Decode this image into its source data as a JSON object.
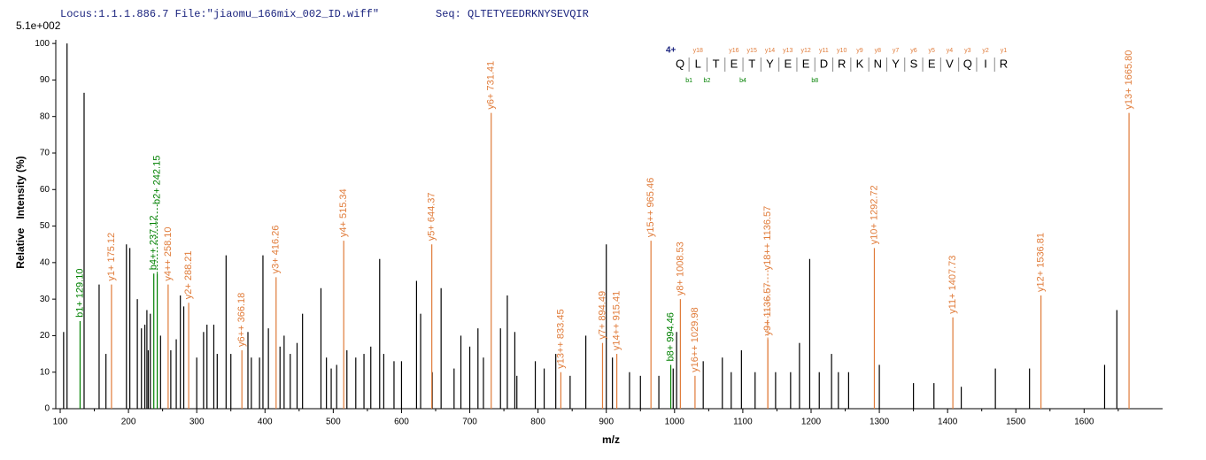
{
  "header": {
    "locus": "Locus:1.1.1.886.7 File:\"jiaomu_166mix_002_ID.wiff\"",
    "seq": "Seq: QLTETYEEDRKNYSEVQIR"
  },
  "chart_data": {
    "type": "spectrum",
    "scale_label": "5.1e+002",
    "xlabel": "m/z",
    "ylabel": "Relative   Intensity (%)",
    "xlim": [
      100,
      1715
    ],
    "ylim": [
      0,
      101
    ],
    "xticks": [
      100,
      200,
      300,
      400,
      500,
      600,
      700,
      800,
      900,
      1000,
      1100,
      1200,
      1300,
      1400,
      1500,
      1600
    ],
    "yticks": [
      0,
      10,
      20,
      30,
      40,
      50,
      60,
      70,
      80,
      90,
      100
    ],
    "series": [
      {
        "color": "#000000",
        "x": [
          105,
          110,
          135,
          157,
          167,
          197,
          202,
          213,
          219,
          224,
          227,
          229,
          232,
          247,
          262,
          270,
          276,
          281,
          300,
          310,
          315,
          325,
          330,
          343,
          350,
          375,
          380,
          392,
          397,
          405,
          422,
          428,
          437,
          447,
          455,
          482,
          490,
          497,
          505,
          520,
          533,
          545,
          555,
          568,
          574,
          589,
          600,
          622,
          628,
          645,
          658,
          677,
          687,
          700,
          712,
          720,
          745,
          755,
          766,
          769,
          796,
          809,
          826,
          847,
          870,
          900,
          909,
          934,
          950,
          977,
          998,
          1003,
          1042,
          1070,
          1083,
          1098,
          1118,
          1148,
          1170,
          1183,
          1198,
          1212,
          1230,
          1240,
          1255,
          1300,
          1350,
          1380,
          1420,
          1470,
          1520,
          1630,
          1648
        ],
        "values": [
          21,
          100,
          86.5,
          34,
          15,
          45,
          44,
          30,
          22,
          23,
          27,
          16,
          26,
          20,
          16,
          19,
          31,
          28,
          14,
          21,
          23,
          23,
          15,
          42,
          15,
          21,
          14,
          14,
          42,
          22,
          17,
          20,
          15,
          18,
          26,
          33,
          14,
          11,
          12,
          16,
          14,
          15,
          17,
          41,
          15,
          13,
          13,
          35,
          26,
          10,
          33,
          11,
          20,
          17,
          22,
          14,
          22,
          31,
          21,
          9,
          13,
          11,
          15,
          9,
          20,
          45,
          14,
          10,
          9,
          9,
          11,
          21,
          13,
          14,
          10,
          16,
          10,
          10,
          10,
          18,
          41,
          10,
          15,
          10,
          10,
          12,
          7,
          7,
          6,
          11,
          11,
          12,
          27
        ]
      },
      {
        "color": "#e07b39",
        "x": [
          175.12,
          258.1,
          288.21,
          366.18,
          416.26,
          515.34,
          644.37,
          731.41,
          833.45,
          894.49,
          915.41,
          965.46,
          1008.53,
          1029.98,
          1136.57,
          1136.57,
          1292.72,
          1407.73,
          1536.81,
          1665.8
        ],
        "values": [
          34,
          34,
          29,
          16,
          36,
          46,
          45,
          81,
          10,
          18,
          15,
          46,
          30,
          9,
          19,
          19,
          44,
          25,
          31,
          81
        ],
        "labels": [
          "y1+ 175.12",
          "y4++ 258.10",
          "y2+ 288.21",
          "y6++ 366.18",
          "y3+ 416.26",
          "y4+ 515.34",
          "y5+ 644.37",
          "y6+ 731.41",
          "y13++ 833.45",
          "y7+ 894.49",
          "y14++ 915.41",
          "y15++ 965.46",
          "y8+ 1008.53",
          "y16++ 1029.98",
          "y9+ 1136.57",
          "y18++ 1136.57",
          "y10+ 1292.72",
          "y11+ 1407.73",
          "y12+ 1536.81",
          "y13+ 1665.80"
        ]
      },
      {
        "color": "#008000",
        "x": [
          129.1,
          237.12,
          242.15,
          994.46
        ],
        "values": [
          24,
          37,
          37,
          12
        ],
        "labels": [
          "b1+ 129.10",
          "b4++ 237.12",
          "b2+ 242.15",
          "b8+ 994.46"
        ]
      }
    ],
    "sequence_map": {
      "charge": "4+",
      "residues": [
        "Q",
        "L",
        "T",
        "E",
        "T",
        "Y",
        "E",
        "E",
        "D",
        "R",
        "K",
        "N",
        "Y",
        "S",
        "E",
        "V",
        "Q",
        "I",
        "R"
      ],
      "y_labels": [
        null,
        "y18",
        null,
        "y16",
        "y15",
        "y14",
        "y13",
        "y12",
        "y11",
        "y10",
        "y9",
        "y8",
        "y7",
        "y6",
        "y5",
        "y4",
        "y3",
        "y2",
        "y1"
      ],
      "b_labels": [
        "b1",
        "b2",
        null,
        "b4",
        null,
        null,
        null,
        "b8",
        null,
        null,
        null,
        null,
        null,
        null,
        null,
        null,
        null,
        null,
        null
      ]
    }
  }
}
